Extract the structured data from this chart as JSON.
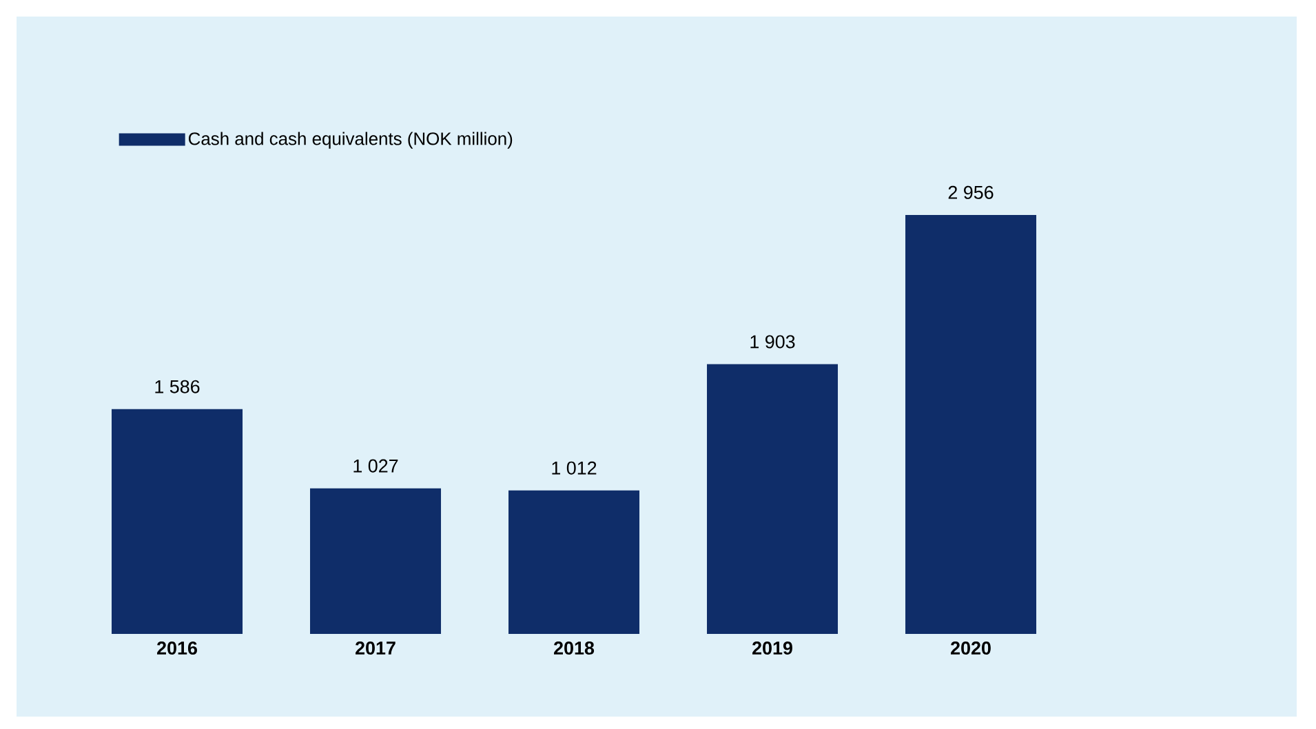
{
  "chart_data": {
    "type": "bar",
    "categories": [
      "2016",
      "2017",
      "2018",
      "2019",
      "2020"
    ],
    "series": [
      {
        "name": "Cash and cash equivalents (NOK million)",
        "color": "#0f2d69",
        "values": [
          1586,
          1027,
          1012,
          1903,
          2956
        ],
        "value_labels": [
          "1 586",
          "1 027",
          "1 012",
          "1 903",
          "2 956"
        ]
      }
    ],
    "legend": "top left"
  }
}
